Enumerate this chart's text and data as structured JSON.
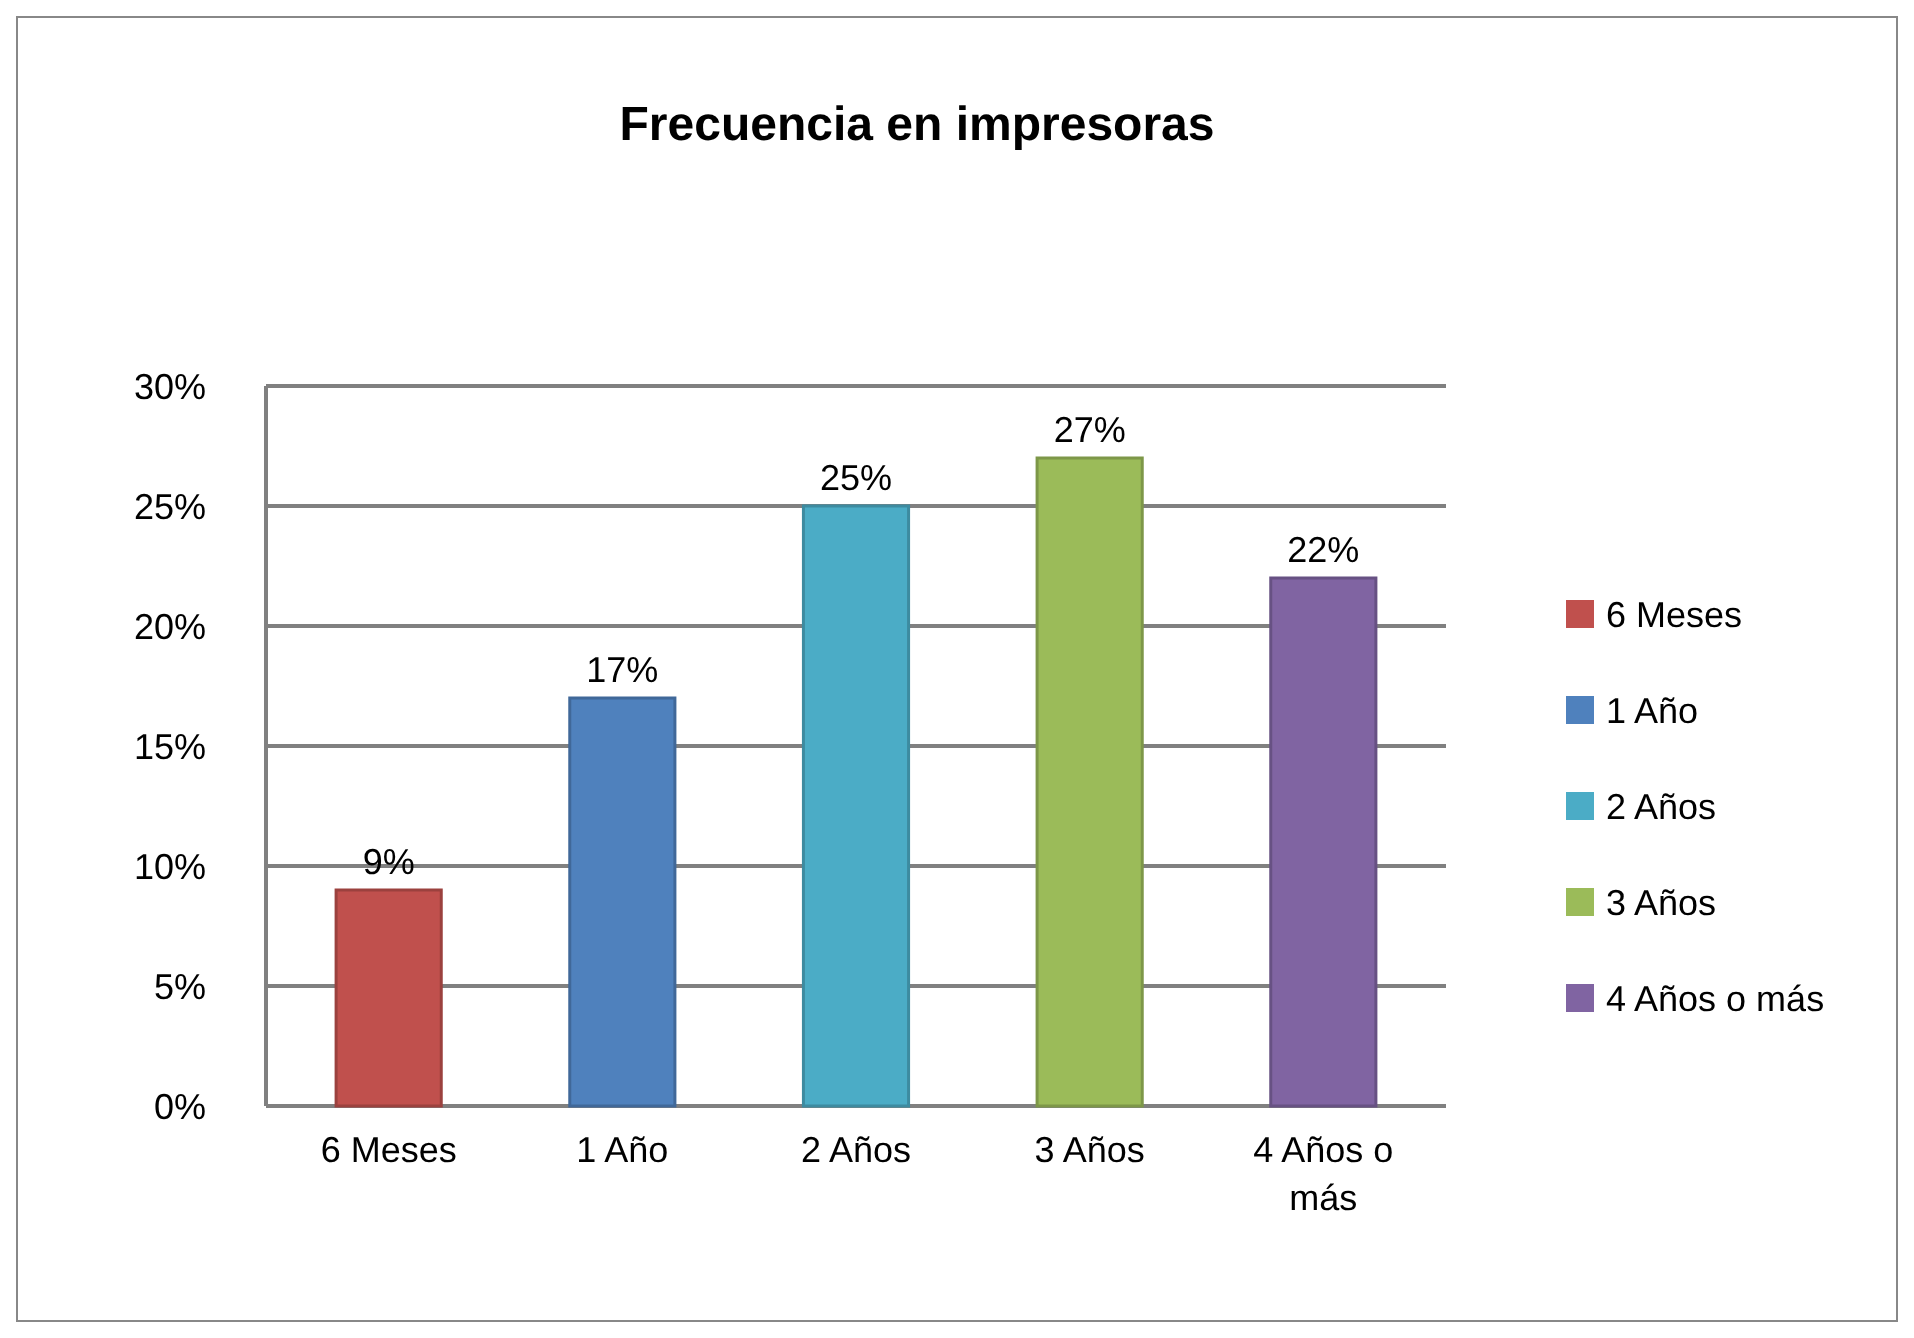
{
  "chart_data": {
    "type": "bar",
    "title": "Frecuencia en impresoras",
    "categories": [
      "6 Meses",
      "1 Año",
      "2 Años",
      "3 Años",
      "4 Años o más"
    ],
    "series": [
      {
        "name": "6 Meses",
        "color": "#c0504d",
        "values": [
          9,
          null,
          null,
          null,
          null
        ],
        "value_labels": [
          "9%",
          null,
          null,
          null,
          null
        ]
      },
      {
        "name": "1 Año",
        "color": "#4f81bd",
        "values": [
          null,
          17,
          null,
          null,
          null
        ],
        "value_labels": [
          null,
          "17%",
          null,
          null,
          null
        ]
      },
      {
        "name": "2 Años",
        "color": "#4bacc6",
        "values": [
          null,
          null,
          25,
          null,
          null
        ],
        "value_labels": [
          null,
          null,
          "25%",
          null,
          null
        ]
      },
      {
        "name": "3 Años",
        "color": "#9bbb59",
        "values": [
          null,
          null,
          null,
          27,
          null
        ],
        "value_labels": [
          null,
          null,
          null,
          "27%",
          null
        ]
      },
      {
        "name": "4 Años o más",
        "color": "#8064a2",
        "values": [
          null,
          null,
          null,
          null,
          22
        ],
        "value_labels": [
          null,
          null,
          null,
          null,
          "22%"
        ]
      }
    ],
    "ylim": [
      0,
      30
    ],
    "yticks": [
      {
        "value": 0,
        "label": "0%"
      },
      {
        "value": 5,
        "label": "5%"
      },
      {
        "value": 10,
        "label": "10%"
      },
      {
        "value": 15,
        "label": "15%"
      },
      {
        "value": 20,
        "label": "20%"
      },
      {
        "value": 25,
        "label": "25%"
      },
      {
        "value": 30,
        "label": "30%"
      }
    ],
    "grid": "y",
    "legend": "right"
  }
}
